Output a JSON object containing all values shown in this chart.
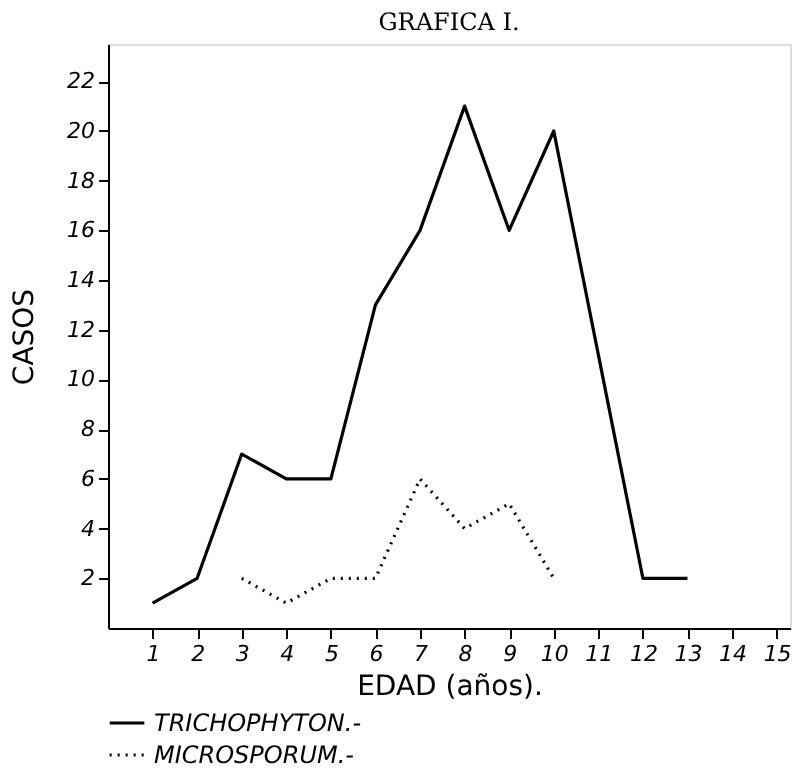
{
  "chart_data": {
    "type": "line",
    "title": "GRAFICA I.",
    "xlabel": "EDAD (años).",
    "ylabel": "CASOS",
    "xlim": [
      0,
      15.3
    ],
    "xticks": [
      1,
      2,
      3,
      4,
      5,
      6,
      7,
      8,
      9,
      10,
      11,
      12,
      13,
      14,
      15
    ],
    "ylim": [
      0,
      23.5
    ],
    "yticks": [
      2,
      4,
      6,
      8,
      10,
      12,
      14,
      16,
      18,
      20,
      22
    ],
    "grid": false,
    "legend": "bottom left",
    "marker": "none",
    "series": [
      {
        "name": "TRICHOPHYTON.-",
        "color": "#000000",
        "line_style": "solid",
        "x": [
          1,
          2,
          3,
          4,
          5,
          6,
          7,
          8,
          9,
          10,
          11,
          12,
          13
        ],
        "values": [
          1,
          2,
          7,
          6,
          6,
          13,
          16,
          21,
          16,
          20,
          11,
          2,
          2
        ]
      },
      {
        "name": "MICROSPORUM.-",
        "color": "#000000",
        "line_style": "dotted",
        "x": [
          3,
          4,
          5,
          6,
          7,
          8,
          9,
          10
        ],
        "values": [
          2,
          1,
          2,
          2,
          6,
          4,
          5,
          2
        ]
      }
    ]
  }
}
